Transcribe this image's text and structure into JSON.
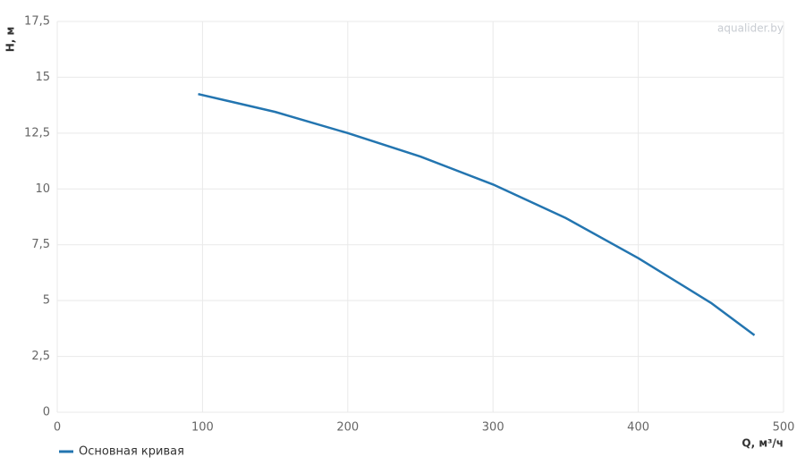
{
  "chart_data": {
    "type": "line",
    "watermark": "aqualider.by",
    "x_label": "Q, м³/ч",
    "y_label": "H, м",
    "x": [
      97,
      150,
      200,
      250,
      300,
      350,
      400,
      450,
      480
    ],
    "series": [
      {
        "name": "Основная кривая",
        "color": "#2375b0",
        "values": [
          14.25,
          13.45,
          12.5,
          11.45,
          10.2,
          8.7,
          6.9,
          4.9,
          3.45
        ]
      }
    ],
    "xlim": [
      0,
      500
    ],
    "xticks": [
      0,
      100,
      200,
      300,
      400,
      500
    ],
    "ylim": [
      0,
      17.5
    ],
    "yticks": [
      0,
      {
        "value": 2.5,
        "label": "2,5"
      },
      5,
      {
        "value": 7.5,
        "label": "7,5"
      },
      10,
      {
        "value": 12.5,
        "label": "12,5"
      },
      15,
      {
        "value": 17.5,
        "label": "17,5"
      }
    ],
    "grid": true,
    "legend": "bottom-left"
  }
}
